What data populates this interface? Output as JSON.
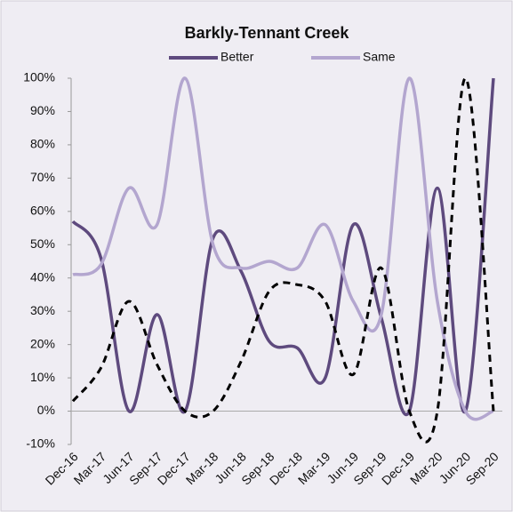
{
  "chart_data": {
    "type": "line",
    "title": "Barkly-Tennant Creek",
    "categories": [
      "Dec-16",
      "Mar-17",
      "Jun-17",
      "Sep-17",
      "Dec-17",
      "Mar-18",
      "Jun-18",
      "Sep-18",
      "Dec-18",
      "Mar-19",
      "Jun-19",
      "Sep-19",
      "Dec-19",
      "Mar-20",
      "Jun-20",
      "Sep-20"
    ],
    "series": [
      {
        "name": "Better",
        "color": "#5e4a7e",
        "dash": false,
        "values": [
          57,
          46,
          0,
          29,
          0,
          52,
          42,
          21,
          19,
          10,
          56,
          28,
          0,
          67,
          0,
          100
        ]
      },
      {
        "name": "Same",
        "color": "#b3a6cf",
        "dash": false,
        "values": [
          41,
          44,
          67,
          56,
          100,
          50,
          43,
          45,
          43,
          56,
          33,
          29,
          100,
          33,
          0,
          0
        ]
      },
      {
        "color": "#000000",
        "dash": true,
        "values": [
          3,
          13,
          33,
          14,
          0,
          0,
          15,
          36,
          38,
          33,
          11,
          43,
          0,
          0,
          100,
          0
        ]
      }
    ],
    "ylim": [
      -10,
      100
    ],
    "yticks": [
      {
        "value": -10,
        "label": "-10%"
      },
      {
        "value": 0,
        "label": "0%"
      },
      {
        "value": 10,
        "label": "10%"
      },
      {
        "value": 20,
        "label": "20%"
      },
      {
        "value": 30,
        "label": "30%"
      },
      {
        "value": 40,
        "label": "40%"
      },
      {
        "value": 50,
        "label": "50%"
      },
      {
        "value": 60,
        "label": "60%"
      },
      {
        "value": 70,
        "label": "70%"
      },
      {
        "value": 80,
        "label": "80%"
      },
      {
        "value": 90,
        "label": "90%"
      },
      {
        "value": 100,
        "label": "100%"
      }
    ],
    "grid": false,
    "legend": "top"
  }
}
